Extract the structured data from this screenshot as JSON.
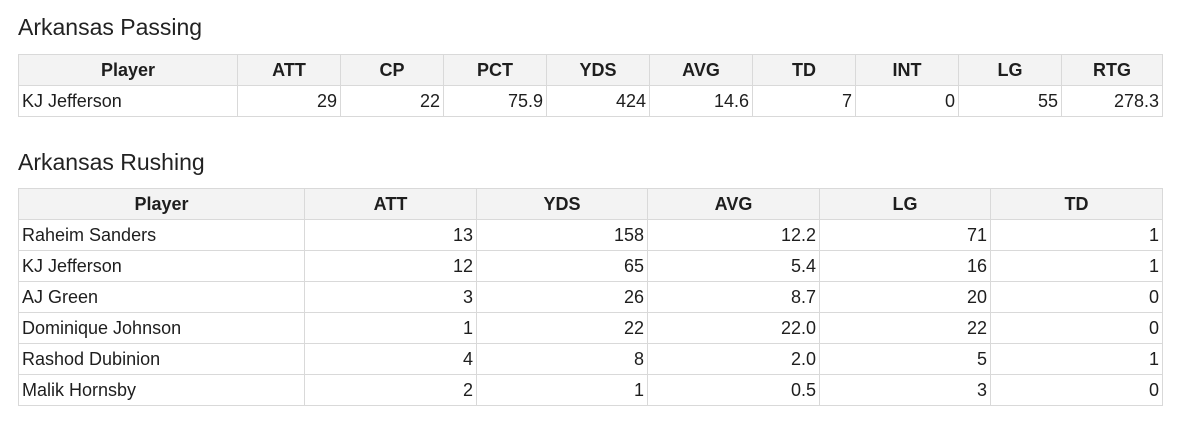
{
  "passing": {
    "title": "Arkansas Passing",
    "columns": [
      "Player",
      "ATT",
      "CP",
      "PCT",
      "YDS",
      "AVG",
      "TD",
      "INT",
      "LG",
      "RTG"
    ],
    "rows": [
      [
        "KJ Jefferson",
        "29",
        "22",
        "75.9",
        "424",
        "14.6",
        "7",
        "0",
        "55",
        "278.3"
      ]
    ]
  },
  "rushing": {
    "title": "Arkansas Rushing",
    "columns": [
      "Player",
      "ATT",
      "YDS",
      "AVG",
      "LG",
      "TD"
    ],
    "rows": [
      [
        "Raheim Sanders",
        "13",
        "158",
        "12.2",
        "71",
        "1"
      ],
      [
        "KJ Jefferson",
        "12",
        "65",
        "5.4",
        "16",
        "1"
      ],
      [
        "AJ Green",
        "3",
        "26",
        "8.7",
        "20",
        "0"
      ],
      [
        "Dominique Johnson",
        "1",
        "22",
        "22.0",
        "22",
        "0"
      ],
      [
        "Rashod Dubinion",
        "4",
        "8",
        "2.0",
        "5",
        "1"
      ],
      [
        "Malik Hornsby",
        "2",
        "1",
        "0.5",
        "3",
        "0"
      ]
    ]
  }
}
